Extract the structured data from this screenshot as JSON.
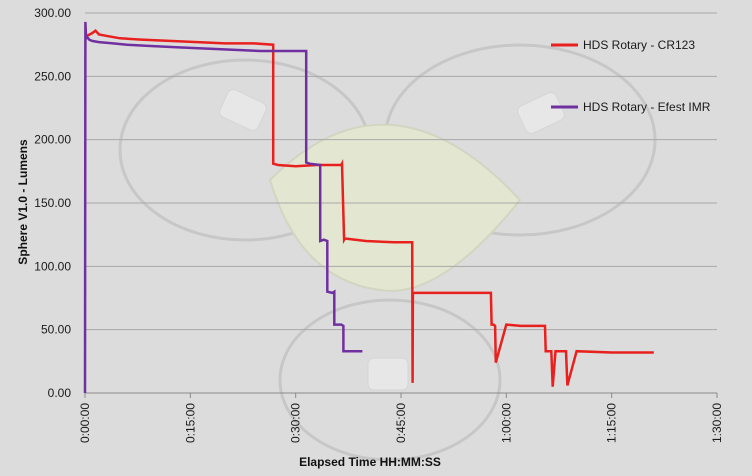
{
  "chart_data": {
    "type": "line",
    "title": "",
    "xlabel": "Elapsed Time HH:MM:SS",
    "ylabel": "Sphere V1.0 - Lumens",
    "xlim": [
      0,
      90
    ],
    "ylim": [
      0,
      300
    ],
    "x_unit": "minutes",
    "x_ticks": [
      0,
      15,
      30,
      45,
      60,
      75,
      90
    ],
    "x_tick_labels": [
      "0:00:00",
      "0:15:00",
      "0:30:00",
      "0:45:00",
      "1:00:00",
      "1:15:00",
      "1:30:00"
    ],
    "y_ticks": [
      0,
      50,
      100,
      150,
      200,
      250,
      300
    ],
    "y_tick_labels": [
      "0.00",
      "50.00",
      "100.00",
      "150.00",
      "200.00",
      "250.00",
      "300.00"
    ],
    "grid": "horizontal",
    "legend_position": "right",
    "series": [
      {
        "name": "HDS Rotary - CR123",
        "color": "#e8201e",
        "x": [
          0.0,
          0.3,
          1.0,
          1.5,
          2.0,
          3.0,
          5.0,
          8.0,
          12.0,
          16.0,
          20.0,
          24.0,
          26.8,
          26.8,
          27.5,
          30.0,
          33.0,
          36.5,
          36.6,
          36.9,
          37.0,
          40.0,
          44.0,
          46.5,
          46.6,
          46.65,
          46.7,
          50.0,
          55.0,
          57.8,
          57.9,
          58.2,
          58.4,
          58.5,
          60.0,
          62.0,
          65.5,
          65.6,
          66.4,
          66.6,
          67.0,
          67.2,
          68.0,
          68.5,
          68.7,
          70.0,
          75.0,
          80.0,
          81.0
        ],
        "y": [
          280,
          282,
          284,
          286,
          283,
          282,
          280,
          279,
          278,
          277,
          276,
          276,
          275,
          181,
          180,
          179,
          180,
          180,
          181,
          121,
          122,
          120,
          119,
          119,
          119,
          8,
          79,
          79,
          79,
          79,
          54,
          54,
          53,
          24,
          54,
          53,
          53,
          33,
          33,
          5,
          33,
          33,
          33,
          33,
          6,
          33,
          32,
          32,
          32
        ]
      },
      {
        "name": "HDS Rotary - Efest IMR",
        "color": "#7030a0",
        "x": [
          0.0,
          0.05,
          0.15,
          0.3,
          0.6,
          1.0,
          2.0,
          4.0,
          6.0,
          9.0,
          13.0,
          17.0,
          21.0,
          25.0,
          28.5,
          31.5,
          31.5,
          32.0,
          33.5,
          33.5,
          34.0,
          34.5,
          34.5,
          35.2,
          35.5,
          35.5,
          36.5,
          36.8,
          36.8,
          39.5
        ],
        "y": [
          0,
          293,
          280,
          281,
          279,
          278,
          277,
          276,
          275,
          274,
          273,
          272,
          271,
          270,
          270,
          270,
          182,
          181,
          180,
          120,
          121,
          120,
          80,
          79,
          80,
          54,
          54,
          53,
          33,
          33
        ]
      }
    ]
  }
}
